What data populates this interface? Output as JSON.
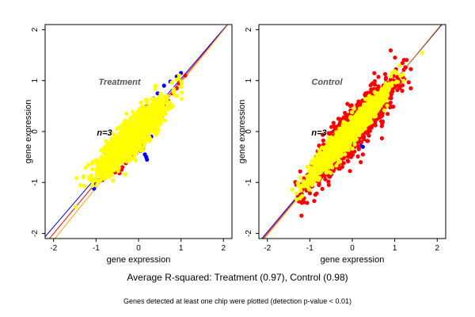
{
  "colors": {
    "red": "#ff0000",
    "blue": "#0000ff",
    "yellow": "#ffff00",
    "axis": "#000000",
    "title_gray": "#555555",
    "fit_orange": "#ffa500"
  },
  "captions": {
    "main": "Average R-squared: Treatment (0.97), Control (0.98)",
    "note": "Genes detected at least one chip were plotted (detection p-value < 0.01)"
  },
  "chart_data": [
    {
      "type": "scatter",
      "title": "Treatment",
      "annotation": "n=3",
      "xlabel": "gene expression",
      "ylabel": "gene expression",
      "xlim": [
        -2.2,
        2.2
      ],
      "ylim": [
        -2.1,
        2.1
      ],
      "x_ticks": [
        -2,
        -1,
        0,
        1,
        2
      ],
      "y_ticks": [
        -2,
        -1,
        0,
        1,
        2
      ],
      "reference_lines": [
        {
          "color": "red",
          "slope": 1.0,
          "intercept": 0.0
        },
        {
          "color": "blue",
          "slope": 0.97,
          "intercept": 0.07
        },
        {
          "color": "orange",
          "slope": 1.03,
          "intercept": -0.07
        }
      ],
      "series": [
        {
          "color": "blue",
          "points": [
            [
              -1.05,
              -1.12
            ],
            [
              -1.0,
              -1.02
            ],
            [
              -0.92,
              -0.85
            ],
            [
              -0.8,
              -0.6
            ],
            [
              -0.72,
              -0.5
            ],
            [
              -0.55,
              -0.3
            ],
            [
              -0.48,
              -0.18
            ],
            [
              -0.35,
              -0.05
            ],
            [
              -0.22,
              0.08
            ],
            [
              -0.1,
              0.2
            ],
            [
              0.05,
              0.35
            ],
            [
              0.2,
              0.5
            ],
            [
              0.35,
              0.65
            ],
            [
              0.45,
              0.75
            ],
            [
              0.6,
              0.9
            ],
            [
              0.75,
              0.98
            ],
            [
              0.9,
              1.08
            ],
            [
              1.0,
              1.15
            ],
            [
              0.1,
              -0.32
            ],
            [
              0.05,
              -0.38
            ],
            [
              0.15,
              -0.45
            ],
            [
              0.18,
              -0.5
            ],
            [
              0.2,
              -0.55
            ],
            [
              -0.05,
              -0.42
            ],
            [
              0.12,
              -0.28
            ],
            [
              0.3,
              -0.1
            ],
            [
              -1.0,
              -0.95
            ],
            [
              -0.95,
              -0.75
            ],
            [
              -0.85,
              -0.62
            ]
          ]
        },
        {
          "color": "red",
          "points": [
            [
              -0.85,
              -0.95
            ],
            [
              -0.7,
              -0.85
            ],
            [
              -0.55,
              -0.8
            ],
            [
              -0.45,
              -0.82
            ],
            [
              -0.4,
              -0.75
            ],
            [
              -0.3,
              -0.62
            ],
            [
              -0.15,
              -0.45
            ],
            [
              0.0,
              -0.3
            ],
            [
              0.2,
              -0.15
            ],
            [
              0.4,
              0.05
            ],
            [
              0.5,
              0.2
            ],
            [
              0.55,
              0.3
            ],
            [
              0.6,
              0.5
            ],
            [
              0.7,
              0.6
            ],
            [
              0.8,
              0.75
            ],
            [
              0.9,
              0.85
            ],
            [
              0.95,
              0.95
            ],
            [
              1.1,
              1.1
            ],
            [
              0.45,
              0.15
            ],
            [
              -0.25,
              -0.55
            ],
            [
              -0.38,
              -0.7
            ]
          ]
        },
        {
          "color": "yellow",
          "ellipse": {
            "cx": -0.15,
            "cy": -0.1,
            "major": 1.15,
            "minor": 0.3,
            "angle_deg": 42,
            "count": 2200
          }
        }
      ]
    },
    {
      "type": "scatter",
      "title": "Control",
      "annotation": "n=3",
      "xlabel": "gene expression",
      "ylabel": "gene expression",
      "xlim": [
        -2.2,
        2.2
      ],
      "ylim": [
        -2.1,
        2.1
      ],
      "x_ticks": [
        -2,
        -1,
        0,
        1,
        2
      ],
      "y_ticks": [
        -2,
        -1,
        0,
        1,
        2
      ],
      "reference_lines": [
        {
          "color": "red",
          "slope": 1.0,
          "intercept": 0.0
        },
        {
          "color": "blue",
          "slope": 0.99,
          "intercept": 0.01
        },
        {
          "color": "orange",
          "slope": 1.01,
          "intercept": -0.01
        }
      ],
      "series": [
        {
          "color": "blue",
          "points": [
            [
              -1.05,
              -1.12
            ],
            [
              -1.0,
              -1.05
            ],
            [
              -0.3,
              -0.1
            ],
            [
              -0.25,
              -0.05
            ],
            [
              -0.2,
              -0.12
            ],
            [
              0.15,
              -0.05
            ],
            [
              0.2,
              -0.1
            ],
            [
              0.2,
              -0.28
            ],
            [
              0.25,
              -0.3
            ],
            [
              -0.15,
              0.0
            ],
            [
              0.1,
              0.05
            ],
            [
              -0.35,
              -0.2
            ]
          ]
        },
        {
          "color": "red",
          "ellipse": {
            "cx": 0.0,
            "cy": 0.0,
            "major": 1.6,
            "minor": 0.36,
            "angle_deg": 45,
            "count": 1500
          }
        },
        {
          "color": "red",
          "points": [
            [
              -0.35,
              0.1
            ],
            [
              -0.3,
              0.15
            ],
            [
              -0.25,
              0.2
            ],
            [
              -0.15,
              0.25
            ],
            [
              -0.1,
              0.3
            ],
            [
              -0.2,
              0.28
            ],
            [
              0.2,
              -0.6
            ],
            [
              0.25,
              -0.45
            ],
            [
              -0.4,
              0.05
            ],
            [
              -0.45,
              0.0
            ]
          ]
        },
        {
          "color": "yellow",
          "ellipse": {
            "cx": -0.15,
            "cy": -0.1,
            "major": 1.35,
            "minor": 0.2,
            "angle_deg": 44,
            "count": 2000
          }
        }
      ]
    }
  ]
}
